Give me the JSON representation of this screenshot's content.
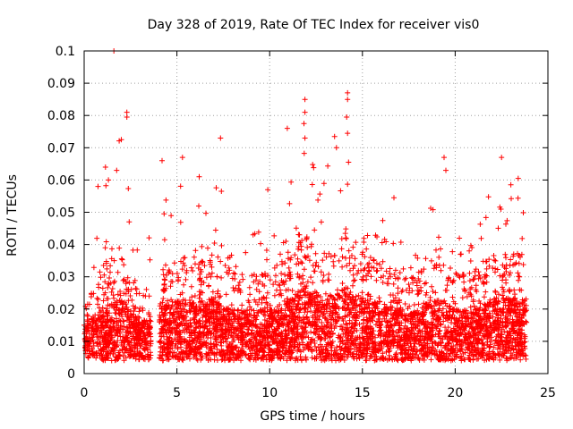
{
  "chart_data": {
    "type": "scatter",
    "title": "Day 328 of 2019, Rate Of TEC Index for receiver vis0",
    "xlabel": "GPS time / hours",
    "ylabel": "ROTI / TECUs",
    "xlim": [
      0,
      25
    ],
    "ylim": [
      0,
      0.1
    ],
    "xticks": [
      0,
      5,
      10,
      15,
      20,
      25
    ],
    "xtick_labels": [
      "0",
      "5",
      "10",
      "15",
      "20",
      "25"
    ],
    "yticks": [
      0,
      0.01,
      0.02,
      0.03,
      0.04,
      0.05,
      0.06,
      0.07,
      0.08,
      0.09,
      0.1
    ],
    "ytick_labels": [
      "0",
      "0.01",
      "0.02",
      "0.03",
      "0.04",
      "0.05",
      "0.06",
      "0.07",
      "0.08",
      "0.09",
      "0.1"
    ],
    "grid": true,
    "marker": "+",
    "color": "#ff0000",
    "data_gap_hours": [
      3.6,
      4.05
    ],
    "series": [
      {
        "name": "ROTI",
        "notable_points": [
          {
            "x": 1.6,
            "y": 0.1
          },
          {
            "x": 2.3,
            "y": 0.081
          },
          {
            "x": 2.3,
            "y": 0.0795
          },
          {
            "x": 1.15,
            "y": 0.064
          },
          {
            "x": 1.75,
            "y": 0.063
          },
          {
            "x": 0.75,
            "y": 0.058
          },
          {
            "x": 4.2,
            "y": 0.066
          },
          {
            "x": 5.3,
            "y": 0.067
          },
          {
            "x": 6.2,
            "y": 0.061
          },
          {
            "x": 7.35,
            "y": 0.073
          },
          {
            "x": 7.4,
            "y": 0.0565
          },
          {
            "x": 9.9,
            "y": 0.057
          },
          {
            "x": 10.95,
            "y": 0.076
          },
          {
            "x": 11.9,
            "y": 0.085
          },
          {
            "x": 11.9,
            "y": 0.081
          },
          {
            "x": 11.85,
            "y": 0.0775
          },
          {
            "x": 11.9,
            "y": 0.073
          },
          {
            "x": 13.5,
            "y": 0.0735
          },
          {
            "x": 13.6,
            "y": 0.07
          },
          {
            "x": 14.2,
            "y": 0.087
          },
          {
            "x": 14.2,
            "y": 0.085
          },
          {
            "x": 14.15,
            "y": 0.0795
          },
          {
            "x": 14.2,
            "y": 0.0745
          },
          {
            "x": 14.25,
            "y": 0.0655
          },
          {
            "x": 16.7,
            "y": 0.0545
          },
          {
            "x": 19.4,
            "y": 0.067
          },
          {
            "x": 19.5,
            "y": 0.063
          },
          {
            "x": 22.5,
            "y": 0.067
          },
          {
            "x": 23.0,
            "y": 0.0585
          },
          {
            "x": 23.4,
            "y": 0.0605
          }
        ],
        "hourly_envelope": [
          {
            "hour": 0,
            "typical_low": 0.005,
            "typical_high": 0.02,
            "peak": 0.03
          },
          {
            "hour": 1,
            "typical_low": 0.004,
            "typical_high": 0.025,
            "peak": 0.064
          },
          {
            "hour": 2,
            "typical_low": 0.004,
            "typical_high": 0.03,
            "peak": 0.1
          },
          {
            "hour": 3,
            "typical_low": 0.004,
            "typical_high": 0.02,
            "peak": 0.035
          },
          {
            "hour": 4,
            "typical_low": 0.004,
            "typical_high": 0.025,
            "peak": 0.066
          },
          {
            "hour": 5,
            "typical_low": 0.004,
            "typical_high": 0.03,
            "peak": 0.067
          },
          {
            "hour": 6,
            "typical_low": 0.004,
            "typical_high": 0.028,
            "peak": 0.061
          },
          {
            "hour": 7,
            "typical_low": 0.004,
            "typical_high": 0.03,
            "peak": 0.073
          },
          {
            "hour": 8,
            "typical_low": 0.004,
            "typical_high": 0.025,
            "peak": 0.047
          },
          {
            "hour": 9,
            "typical_low": 0.004,
            "typical_high": 0.025,
            "peak": 0.047
          },
          {
            "hour": 10,
            "typical_low": 0.004,
            "typical_high": 0.025,
            "peak": 0.057
          },
          {
            "hour": 11,
            "typical_low": 0.004,
            "typical_high": 0.03,
            "peak": 0.076
          },
          {
            "hour": 12,
            "typical_low": 0.004,
            "typical_high": 0.035,
            "peak": 0.085
          },
          {
            "hour": 13,
            "typical_low": 0.004,
            "typical_high": 0.03,
            "peak": 0.0735
          },
          {
            "hour": 14,
            "typical_low": 0.004,
            "typical_high": 0.035,
            "peak": 0.087
          },
          {
            "hour": 15,
            "typical_low": 0.004,
            "typical_high": 0.03,
            "peak": 0.045
          },
          {
            "hour": 16,
            "typical_low": 0.004,
            "typical_high": 0.028,
            "peak": 0.0545
          },
          {
            "hour": 17,
            "typical_low": 0.004,
            "typical_high": 0.025,
            "peak": 0.045
          },
          {
            "hour": 18,
            "typical_low": 0.004,
            "typical_high": 0.025,
            "peak": 0.042
          },
          {
            "hour": 19,
            "typical_low": 0.004,
            "typical_high": 0.03,
            "peak": 0.067
          },
          {
            "hour": 20,
            "typical_low": 0.004,
            "typical_high": 0.025,
            "peak": 0.05
          },
          {
            "hour": 21,
            "typical_low": 0.004,
            "typical_high": 0.025,
            "peak": 0.045
          },
          {
            "hour": 22,
            "typical_low": 0.004,
            "typical_high": 0.03,
            "peak": 0.067
          },
          {
            "hour": 23,
            "typical_low": 0.004,
            "typical_high": 0.03,
            "peak": 0.0605
          }
        ]
      }
    ]
  }
}
